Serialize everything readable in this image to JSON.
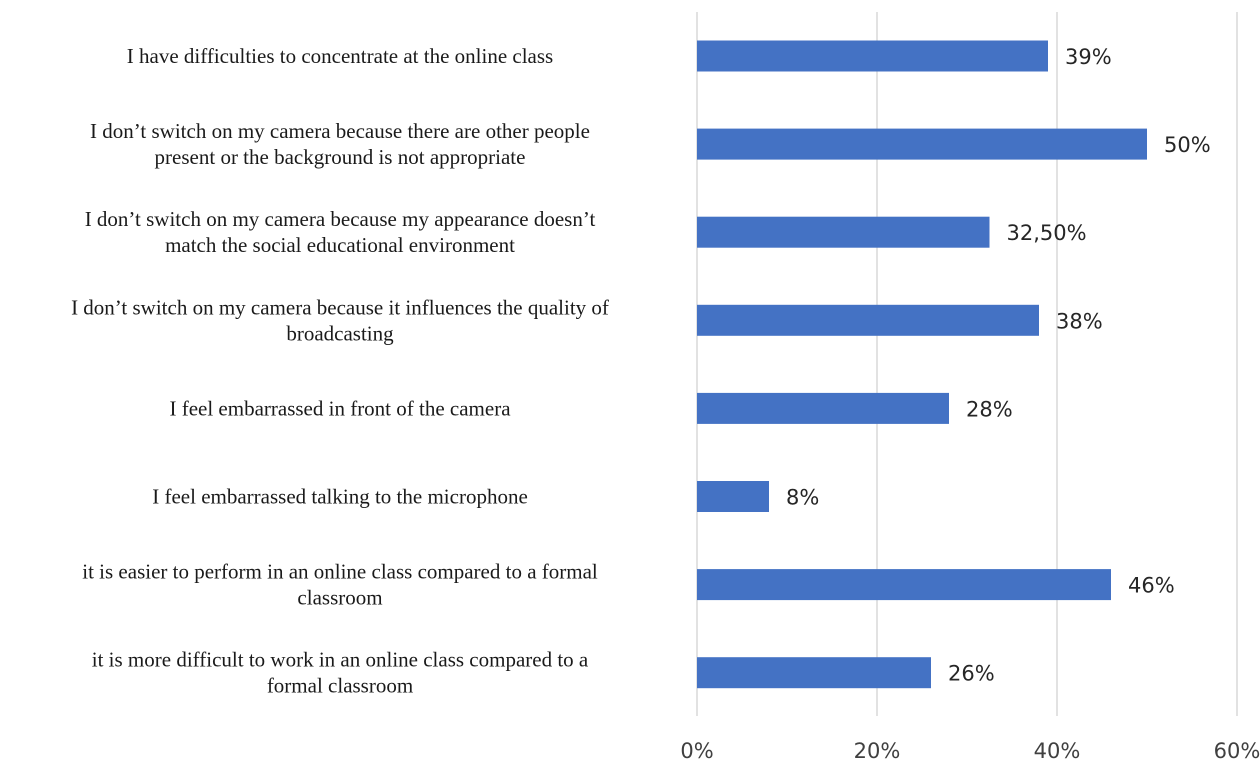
{
  "chart_data": {
    "type": "bar",
    "orientation": "horizontal",
    "categories": [
      [
        "I have difficulties to concentrate at the online class"
      ],
      [
        "I don’t switch on my camera because there are other people",
        "present or the background is not appropriate"
      ],
      [
        "I don’t switch on my camera because my appearance doesn’t",
        "match the social educational environment"
      ],
      [
        "I don’t switch on my camera because it influences the quality of",
        "broadcasting"
      ],
      [
        "I feel embarrassed in front of the camera"
      ],
      [
        "I feel embarrassed talking to the microphone"
      ],
      [
        "it is easier to perform in an online class compared to a formal",
        "classroom"
      ],
      [
        "it is more difficult to work in an online class compared to a",
        "formal classroom"
      ]
    ],
    "values": [
      39,
      50,
      32.5,
      38,
      28,
      8,
      46,
      26
    ],
    "data_labels": [
      "39%",
      "50%",
      "32,50%",
      "38%",
      "28%",
      "8%",
      "46%",
      "26%"
    ],
    "xlim": [
      0,
      60
    ],
    "xticks": [
      0,
      20,
      40,
      60
    ],
    "xtick_labels": [
      "0%",
      "20%",
      "40%",
      "60%"
    ],
    "grid": true,
    "legend": "none",
    "bar_color": "#4472C4"
  }
}
